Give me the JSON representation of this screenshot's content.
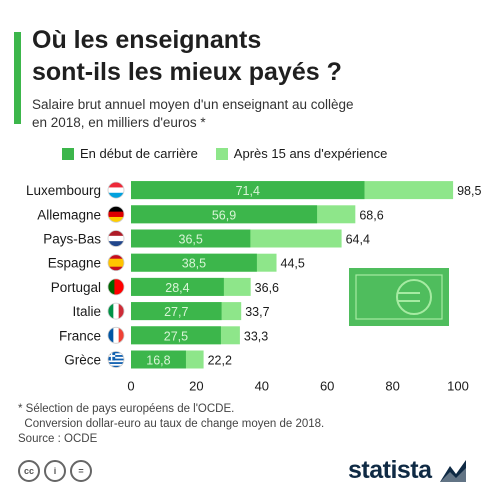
{
  "title_line1": "Où les enseignants",
  "title_line2": "sont-ils les mieux payés ?",
  "subtitle_line1": "Salaire brut annuel moyen d'un enseignant au collège",
  "subtitle_line2": "en 2018, en milliers d'euros *",
  "colors": {
    "accent": "#3cb64b",
    "series_start": "#3cb64b",
    "series_15y": "#8ee68a"
  },
  "chart_data": {
    "type": "bar",
    "orientation": "horizontal",
    "categories": [
      "Luxembourg",
      "Allemagne",
      "Pays-Bas",
      "Espagne",
      "Portugal",
      "Italie",
      "France",
      "Grèce"
    ],
    "series": [
      {
        "name": "En début de carrière",
        "values": [
          71.4,
          56.9,
          36.5,
          38.5,
          28.4,
          27.7,
          27.5,
          16.8
        ]
      },
      {
        "name": "Après 15 ans d'expérience",
        "values": [
          98.5,
          68.6,
          64.4,
          44.5,
          36.6,
          33.7,
          33.3,
          22.2
        ]
      }
    ],
    "value_labels_start": [
      "71,4",
      "56,9",
      "36,5",
      "38,5",
      "28,4",
      "27,7",
      "27,5",
      "16,8"
    ],
    "value_labels_15y": [
      "98,5",
      "68,6",
      "64,4",
      "44,5",
      "36,6",
      "33,7",
      "33,3",
      "22,2"
    ],
    "xlim": [
      0,
      100
    ],
    "xticks": [
      0,
      20,
      40,
      60,
      80,
      100
    ],
    "grid": false,
    "legend_position": "top"
  },
  "flags": [
    "luxembourg-flag-icon",
    "germany-flag-icon",
    "netherlands-flag-icon",
    "spain-flag-icon",
    "portugal-flag-icon",
    "italy-flag-icon",
    "france-flag-icon",
    "greece-flag-icon"
  ],
  "footnote_line1": "* Sélection de pays européens de l'OCDE.",
  "footnote_line2": "  Conversion dollar-euro au taux de change moyen de 2018.",
  "footnote_line3": "Source : OCDE",
  "license_icons": [
    "cc",
    "i",
    "="
  ],
  "brand": "statista"
}
